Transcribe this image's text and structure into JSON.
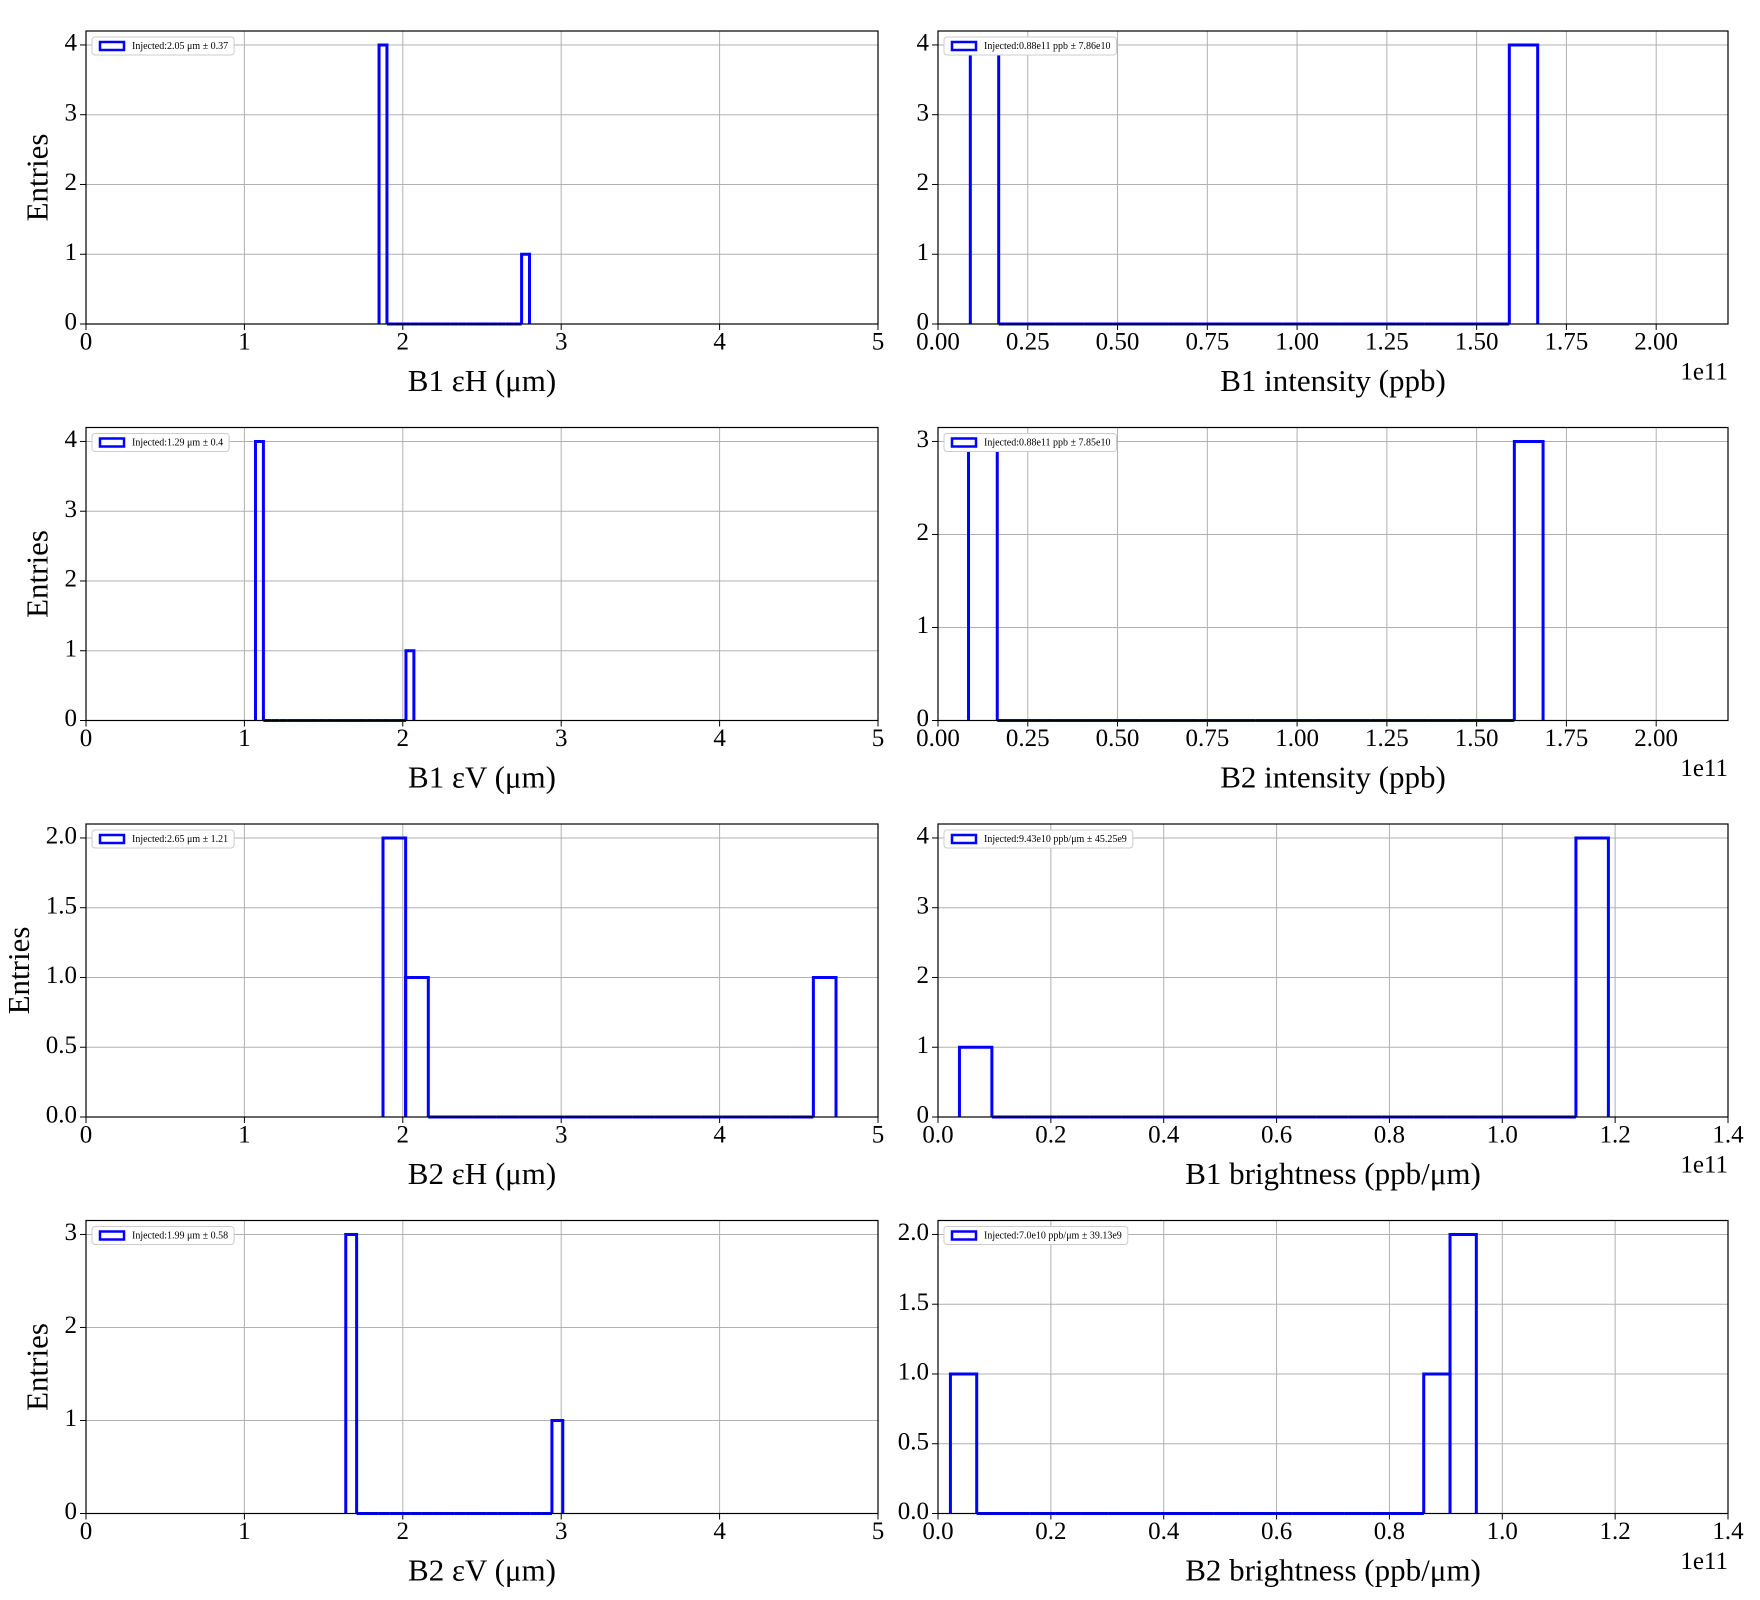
{
  "chart_data": [
    {
      "type": "histogram",
      "xlabel": "B1 εH (μm)",
      "ylabel": "Entries",
      "xlim": [
        0,
        5
      ],
      "ylim": [
        0,
        4.2
      ],
      "xticks": [
        0,
        1,
        2,
        3,
        4,
        5
      ],
      "yticks": [
        0,
        1,
        2,
        3,
        4
      ],
      "grid": true,
      "legend": "upper left",
      "bins": [
        1.85,
        1.9,
        1.95,
        2.0,
        2.05,
        2.1,
        2.15,
        2.2,
        2.25,
        2.3,
        2.35,
        2.4,
        2.45,
        2.5,
        2.55,
        2.6,
        2.65,
        2.7,
        2.75,
        2.8
      ],
      "series": [
        {
          "name": "Injected:2.05 μm ± 0.37",
          "color": "#0000ff",
          "values": [
            4,
            0,
            0,
            0,
            0,
            0,
            0,
            0,
            0,
            0,
            0,
            0,
            0,
            0,
            0,
            0,
            0,
            0,
            1
          ]
        }
      ]
    },
    {
      "type": "histogram",
      "xlabel": "B1 intensity (ppb)",
      "x_offset_label": "1e11",
      "xlim": [
        0,
        2.2
      ],
      "ylim": [
        0,
        4.2
      ],
      "xticks": [
        {
          "value": 0,
          "label": "0.00"
        },
        0.25,
        {
          "value": 0.5,
          "label": "0.50"
        },
        0.75,
        {
          "value": 1,
          "label": "1.00"
        },
        1.25,
        {
          "value": 1.5,
          "label": "1.50"
        },
        1.75,
        {
          "value": 2,
          "label": "2.00"
        }
      ],
      "yticks": [
        0,
        1,
        2,
        3,
        4
      ],
      "grid": true,
      "legend": "upper left",
      "bins": [
        0.09,
        0.169,
        0.248,
        0.327,
        0.406,
        0.485,
        0.564,
        0.643,
        0.722,
        0.801,
        0.88,
        0.959,
        1.038,
        1.117,
        1.196,
        1.275,
        1.354,
        1.433,
        1.512,
        1.591,
        1.67
      ],
      "series": [
        {
          "name": "Injected:0.88e11 ppb ± 7.86e10",
          "color": "#0000ff",
          "values": [
            4,
            0,
            0,
            0,
            0,
            0,
            0,
            0,
            0,
            0,
            0,
            0,
            0,
            0,
            0,
            0,
            0,
            0,
            0,
            4
          ]
        }
      ]
    },
    {
      "type": "histogram",
      "xlabel": "B1 εV (μm)",
      "ylabel": "Entries",
      "xlim": [
        0,
        5
      ],
      "ylim": [
        0,
        4.2
      ],
      "xticks": [
        0,
        1,
        2,
        3,
        4,
        5
      ],
      "yticks": [
        0,
        1,
        2,
        3,
        4
      ],
      "grid": true,
      "legend": "upper left",
      "bins": [
        1.07,
        1.12,
        1.17,
        1.22,
        1.27,
        1.32,
        1.37,
        1.42,
        1.47,
        1.52,
        1.57,
        1.62,
        1.67,
        1.72,
        1.77,
        1.82,
        1.87,
        1.92,
        1.97,
        2.02,
        2.07
      ],
      "series": [
        {
          "name": "Injected:1.29 μm ± 0.4",
          "color": "#0000ff",
          "values": [
            4,
            0,
            0,
            0,
            0,
            0,
            0,
            0,
            0,
            0,
            0,
            0,
            0,
            0,
            0,
            0,
            0,
            0,
            0,
            1
          ]
        }
      ]
    },
    {
      "type": "histogram",
      "xlabel": "B2 intensity (ppb)",
      "x_offset_label": "1e11",
      "xlim": [
        0,
        2.2
      ],
      "ylim": [
        0,
        3.15
      ],
      "xticks": [
        {
          "value": 0,
          "label": "0.00"
        },
        0.25,
        {
          "value": 0.5,
          "label": "0.50"
        },
        0.75,
        {
          "value": 1,
          "label": "1.00"
        },
        1.25,
        {
          "value": 1.5,
          "label": "1.50"
        },
        1.75,
        {
          "value": 2,
          "label": "2.00"
        }
      ],
      "yticks": [
        0,
        1,
        2,
        3
      ],
      "grid": true,
      "legend": "upper left",
      "bins": [
        0.085,
        0.165,
        0.245,
        0.325,
        0.405,
        0.485,
        0.565,
        0.645,
        0.725,
        0.805,
        0.885,
        0.965,
        1.045,
        1.125,
        1.205,
        1.285,
        1.365,
        1.445,
        1.525,
        1.605,
        1.685
      ],
      "series": [
        {
          "name": "Injected:0.88e11 ppb ± 7.85e10",
          "color": "#0000ff",
          "values": [
            3,
            0,
            0,
            0,
            0,
            0,
            0,
            0,
            0,
            0,
            0,
            0,
            0,
            0,
            0,
            0,
            0,
            0,
            0,
            3
          ]
        }
      ]
    },
    {
      "type": "histogram",
      "xlabel": "B2 εH (μm)",
      "ylabel": "Entries",
      "xlim": [
        0,
        5
      ],
      "ylim": [
        0,
        2.1
      ],
      "xticks": [
        0,
        1,
        2,
        3,
        4,
        5
      ],
      "yticks": [
        {
          "value": 0,
          "label": "0.0"
        },
        0.5,
        {
          "value": 1,
          "label": "1.0"
        },
        1.5,
        {
          "value": 2,
          "label": "2.0"
        }
      ],
      "grid": true,
      "legend": "upper left",
      "bins": [
        1.875,
        2.018,
        2.161,
        2.304,
        2.447,
        2.59,
        2.733,
        2.876,
        3.019,
        3.162,
        3.305,
        3.448,
        3.591,
        3.734,
        3.877,
        4.02,
        4.163,
        4.306,
        4.449,
        4.592,
        4.735
      ],
      "series": [
        {
          "name": "Injected:2.65 μm ± 1.21",
          "color": "#0000ff",
          "values": [
            2,
            1,
            0,
            0,
            0,
            0,
            0,
            0,
            0,
            0,
            0,
            0,
            0,
            0,
            0,
            0,
            0,
            0,
            0,
            1
          ]
        }
      ]
    },
    {
      "type": "histogram",
      "xlabel": "B1 brightness (ppb/μm)",
      "x_offset_label": "1e11",
      "xlim": [
        0,
        1.4
      ],
      "ylim": [
        0,
        4.2
      ],
      "xticks": [
        {
          "value": 0,
          "label": "0.0"
        },
        0.2,
        0.4,
        0.6,
        0.8,
        {
          "value": 1,
          "label": "1.0"
        },
        1.2,
        1.4
      ],
      "yticks": [
        0,
        1,
        2,
        3,
        4
      ],
      "grid": true,
      "legend": "upper left",
      "bins": [
        0.038,
        0.0955,
        0.153,
        0.2105,
        0.268,
        0.3255,
        0.383,
        0.4405,
        0.498,
        0.5555,
        0.613,
        0.6705,
        0.728,
        0.7855,
        0.843,
        0.9005,
        0.958,
        1.0155,
        1.073,
        1.1305,
        1.188
      ],
      "series": [
        {
          "name": "Injected:9.43e10 ppb/μm ± 45.25e9",
          "color": "#0000ff",
          "values": [
            1,
            0,
            0,
            0,
            0,
            0,
            0,
            0,
            0,
            0,
            0,
            0,
            0,
            0,
            0,
            0,
            0,
            0,
            0,
            4
          ]
        }
      ]
    },
    {
      "type": "histogram",
      "xlabel": "B2 εV (μm)",
      "ylabel": "Entries",
      "xlim": [
        0,
        5
      ],
      "ylim": [
        0,
        3.15
      ],
      "xticks": [
        0,
        1,
        2,
        3,
        4,
        5
      ],
      "yticks": [
        0,
        1,
        2,
        3
      ],
      "grid": true,
      "legend": "upper left",
      "bins": [
        1.64,
        1.7085,
        1.777,
        1.8455,
        1.914,
        1.9825,
        2.051,
        2.1195,
        2.188,
        2.2565,
        2.325,
        2.3935,
        2.462,
        2.5305,
        2.599,
        2.6675,
        2.736,
        2.8045,
        2.873,
        2.9415,
        3.01
      ],
      "series": [
        {
          "name": "Injected:1.99 μm ± 0.58",
          "color": "#0000ff",
          "values": [
            3,
            0,
            0,
            0,
            0,
            0,
            0,
            0,
            0,
            0,
            0,
            0,
            0,
            0,
            0,
            0,
            0,
            0,
            0,
            1
          ]
        }
      ]
    },
    {
      "type": "histogram",
      "xlabel": "B2 brightness (ppb/μm)",
      "x_offset_label": "1e11",
      "xlim": [
        0,
        1.4
      ],
      "ylim": [
        0,
        2.1
      ],
      "xticks": [
        {
          "value": 0,
          "label": "0.0"
        },
        0.2,
        0.4,
        0.6,
        0.8,
        {
          "value": 1,
          "label": "1.0"
        },
        1.2,
        1.4
      ],
      "yticks": [
        {
          "value": 0,
          "label": "0.0"
        },
        0.5,
        {
          "value": 1,
          "label": "1.0"
        },
        1.5,
        {
          "value": 2,
          "label": "2.0"
        }
      ],
      "grid": true,
      "legend": "upper left",
      "bins": [
        0.022,
        0.0686,
        0.1152,
        0.1618,
        0.2084,
        0.255,
        0.3016,
        0.3482,
        0.3948,
        0.4414,
        0.488,
        0.5346,
        0.5812,
        0.6278,
        0.6744,
        0.721,
        0.7676,
        0.8142,
        0.8608,
        0.9074,
        0.954
      ],
      "series": [
        {
          "name": "Injected:7.0e10 ppb/μm ± 39.13e9",
          "color": "#0000ff",
          "values": [
            1,
            0,
            0,
            0,
            0,
            0,
            0,
            0,
            0,
            0,
            0,
            0,
            0,
            0,
            0,
            0,
            0,
            0,
            1,
            2
          ]
        }
      ]
    }
  ]
}
